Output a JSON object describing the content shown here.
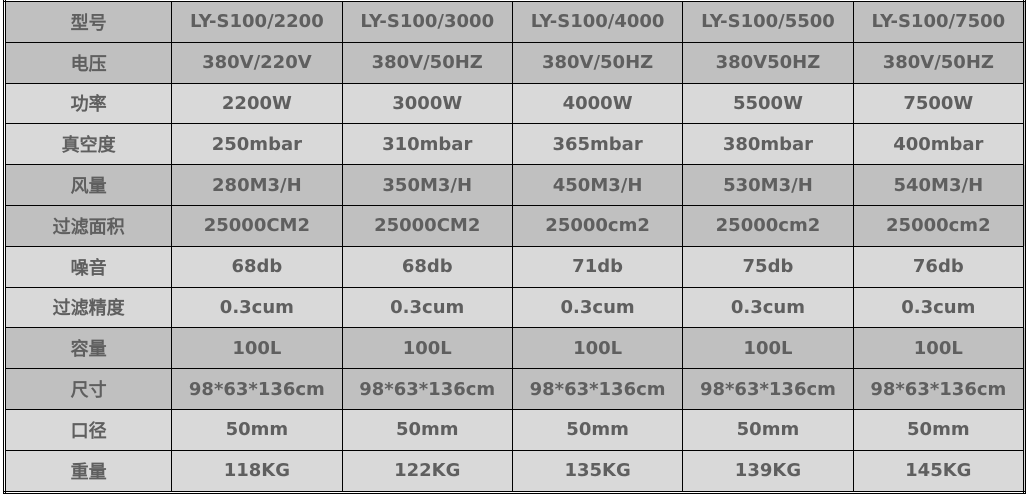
{
  "colors": {
    "dark_row": "#c0c0c0",
    "light_row": "#d9d9d9",
    "text": "#5f5f5f"
  },
  "rows": [
    [
      "型号",
      "LY-S100/2200",
      "LY-S100/3000",
      "LY-S100/4000",
      "LY-S100/5500",
      "LY-S100/7500"
    ],
    [
      "电压",
      "380V/220V",
      "380V/50HZ",
      "380V/50HZ",
      "380V50HZ",
      "380V/50HZ"
    ],
    [
      "功率",
      "2200W",
      "3000W",
      "4000W",
      "5500W",
      "7500W"
    ],
    [
      "真空度",
      "250mbar",
      "310mbar",
      "365mbar",
      "380mbar",
      "400mbar"
    ],
    [
      "风量",
      "280M3/H",
      "350M3/H",
      "450M3/H",
      "530M3/H",
      "540M3/H"
    ],
    [
      "过滤面积",
      "25000CM2",
      "25000CM2",
      "25000cm2",
      "25000cm2",
      "25000cm2"
    ],
    [
      "噪音",
      "68db",
      "68db",
      "71db",
      "75db",
      "76db"
    ],
    [
      "过滤精度",
      "0.3cum",
      "0.3cum",
      "0.3cum",
      "0.3cum",
      "0.3cum"
    ],
    [
      "容量",
      "100L",
      "100L",
      "100L",
      "100L",
      "100L"
    ],
    [
      "尺寸",
      "98*63*136cm",
      "98*63*136cm",
      "98*63*136cm",
      "98*63*136cm",
      "98*63*136cm"
    ],
    [
      "口径",
      "50mm",
      "50mm",
      "50mm",
      "50mm",
      "50mm"
    ],
    [
      "重量",
      "118KG",
      "122KG",
      "135KG",
      "139KG",
      "145KG"
    ]
  ]
}
